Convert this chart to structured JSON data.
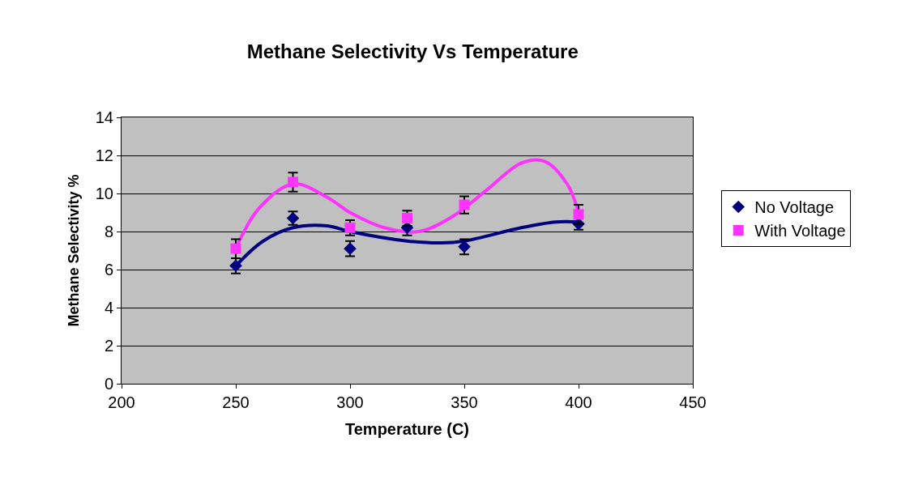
{
  "chart_data": {
    "type": "scatter",
    "title": "Methane Selectivity Vs Temperature",
    "xlabel": "Temperature (C)",
    "ylabel": "Methane Selectivity %",
    "xlim": [
      200,
      450
    ],
    "xticks": [
      200,
      250,
      300,
      350,
      400,
      450
    ],
    "ylim": [
      0,
      14
    ],
    "yticks": [
      0,
      2,
      4,
      6,
      8,
      10,
      12,
      14
    ],
    "grid": "y",
    "legend": "right",
    "x": [
      250,
      275,
      300,
      325,
      350,
      400
    ],
    "series": [
      {
        "name": "No Voltage",
        "color": "#000080",
        "marker": "diamond",
        "values": [
          6.2,
          8.7,
          7.1,
          8.2,
          7.2,
          8.4
        ],
        "errors": [
          0.4,
          0.35,
          0.4,
          0.4,
          0.4,
          0.3
        ]
      },
      {
        "name": "With Voltage",
        "color": "#ff33ff",
        "marker": "square",
        "values": [
          7.1,
          10.6,
          8.2,
          8.7,
          9.4,
          8.9
        ],
        "errors": [
          0.5,
          0.5,
          0.4,
          0.4,
          0.45,
          0.5
        ]
      },
      {
        "type": "line",
        "color": "#000080",
        "marker": "none",
        "x": [
          250,
          262,
          275,
          290,
          300,
          325,
          340,
          350,
          375,
          390,
          400
        ],
        "values": [
          6.2,
          7.5,
          8.2,
          8.3,
          8.0,
          7.5,
          7.4,
          7.5,
          8.2,
          8.5,
          8.5
        ]
      },
      {
        "type": "line",
        "color": "#ff33ff",
        "marker": "none",
        "x": [
          250,
          260,
          275,
          290,
          300,
          315,
          330,
          345,
          360,
          375,
          385,
          395,
          400
        ],
        "values": [
          7.1,
          9.2,
          10.5,
          9.8,
          9.0,
          8.2,
          8.0,
          8.8,
          10.2,
          11.6,
          11.7,
          10.5,
          9.0
        ]
      }
    ]
  }
}
